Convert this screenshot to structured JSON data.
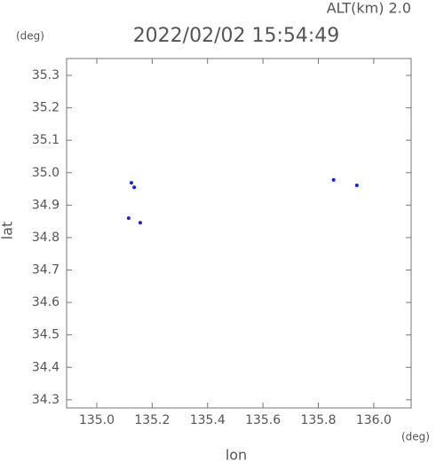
{
  "chart_data": {
    "type": "scatter",
    "title": "2022/02/02 15:54:49",
    "subtitle": "ALT(km) 2.0",
    "x_label": "lon",
    "y_label": "lat",
    "x_unit": "(deg)",
    "y_unit": "(deg)",
    "x": [
      135.125,
      135.135,
      135.157,
      135.115,
      135.855,
      135.939
    ],
    "values": [
      34.969,
      34.955,
      34.846,
      34.86,
      34.978,
      34.961
    ],
    "color": "#1a1aff",
    "xlim": [
      134.891,
      136.135
    ],
    "ylim": [
      34.275,
      35.352
    ],
    "xticks": [
      {
        "value": 135.0,
        "label": "135.0"
      },
      135.2,
      135.4,
      135.6,
      135.8,
      {
        "value": 136.0,
        "label": "136.0"
      }
    ],
    "yticks": [
      35.3,
      35.2,
      35.1,
      {
        "value": 35.0,
        "label": "35.0"
      },
      34.9,
      34.8,
      34.7,
      34.6,
      34.5,
      34.4,
      34.3
    ],
    "grid": false
  }
}
